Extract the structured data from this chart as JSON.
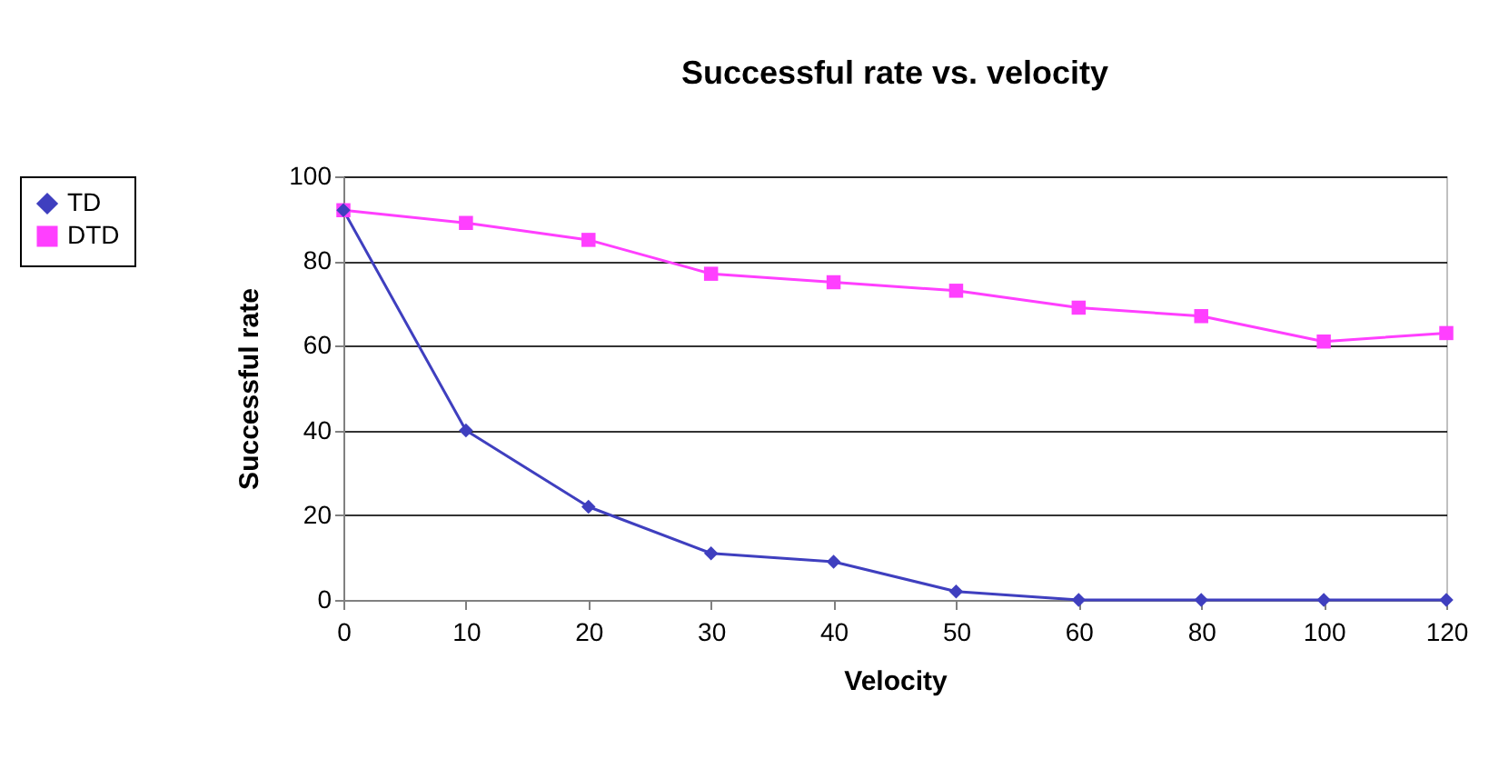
{
  "chart_data": {
    "type": "line",
    "title": "Successful rate vs. velocity",
    "xlabel": "Velocity",
    "ylabel": "Successful rate",
    "categories": [
      "0",
      "10",
      "20",
      "30",
      "40",
      "50",
      "60",
      "80",
      "100",
      "120"
    ],
    "series": [
      {
        "name": "TD",
        "color": "#3f3fbf",
        "marker": "diamond",
        "values": [
          92,
          40,
          22,
          11,
          9,
          2,
          0,
          0,
          0,
          0
        ]
      },
      {
        "name": "DTD",
        "color": "#ff3fff",
        "marker": "square",
        "values": [
          92,
          89,
          85,
          77,
          75,
          73,
          69,
          67,
          61,
          63
        ]
      }
    ],
    "ylim": [
      0,
      100
    ],
    "yticks": [
      0,
      20,
      40,
      60,
      80,
      100
    ],
    "grid": "y",
    "legend": "left",
    "line_style": "solid"
  }
}
